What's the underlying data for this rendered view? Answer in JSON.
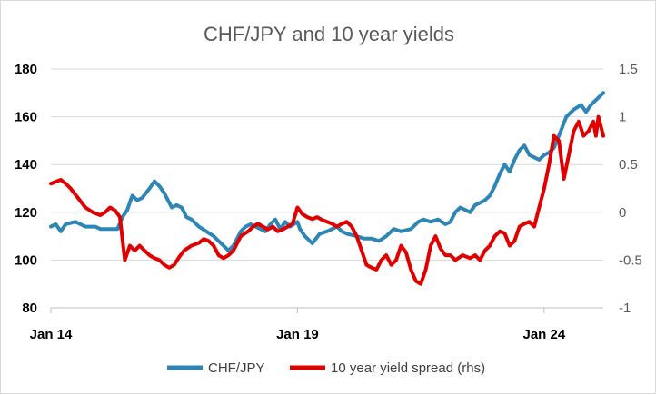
{
  "chart_data": {
    "type": "line",
    "title": "CHF/JPY and 10 year yields",
    "x_ticks": [
      "Jan 14",
      "Jan 19",
      "Jan 24"
    ],
    "x_range": [
      2014.0,
      2025.2
    ],
    "y_left": {
      "ticks": [
        "80",
        "100",
        "120",
        "140",
        "160",
        "180"
      ],
      "range": [
        80,
        180
      ]
    },
    "y_right": {
      "ticks": [
        "-1",
        "-0.5",
        "0",
        "0.5",
        "1",
        "1.5"
      ],
      "range": [
        -1,
        1.5
      ]
    },
    "grid": "horizontal",
    "legend_position": "bottom",
    "series": [
      {
        "name": "CHF/JPY",
        "axis": "left",
        "color": "#2e86b7",
        "points": [
          [
            2014.0,
            114
          ],
          [
            2014.1,
            115
          ],
          [
            2014.2,
            112
          ],
          [
            2014.3,
            115
          ],
          [
            2014.5,
            116
          ],
          [
            2014.7,
            114
          ],
          [
            2014.9,
            114
          ],
          [
            2015.0,
            113
          ],
          [
            2015.2,
            113
          ],
          [
            2015.35,
            113
          ],
          [
            2015.45,
            118
          ],
          [
            2015.55,
            121
          ],
          [
            2015.65,
            127
          ],
          [
            2015.75,
            125
          ],
          [
            2015.85,
            126
          ],
          [
            2016.0,
            130
          ],
          [
            2016.1,
            133
          ],
          [
            2016.2,
            131
          ],
          [
            2016.3,
            128
          ],
          [
            2016.45,
            122
          ],
          [
            2016.55,
            123
          ],
          [
            2016.65,
            122
          ],
          [
            2016.75,
            118
          ],
          [
            2016.85,
            117
          ],
          [
            2016.95,
            115
          ],
          [
            2017.0,
            114
          ],
          [
            2017.15,
            112
          ],
          [
            2017.3,
            110
          ],
          [
            2017.4,
            108
          ],
          [
            2017.5,
            106
          ],
          [
            2017.6,
            104
          ],
          [
            2017.7,
            106
          ],
          [
            2017.85,
            112
          ],
          [
            2017.95,
            114
          ],
          [
            2018.05,
            115
          ],
          [
            2018.15,
            114
          ],
          [
            2018.25,
            113
          ],
          [
            2018.35,
            112
          ],
          [
            2018.45,
            115
          ],
          [
            2018.55,
            117
          ],
          [
            2018.65,
            113
          ],
          [
            2018.75,
            116
          ],
          [
            2018.85,
            114
          ],
          [
            2019.0,
            116
          ],
          [
            2019.05,
            113
          ],
          [
            2019.15,
            110
          ],
          [
            2019.3,
            107
          ],
          [
            2019.45,
            111
          ],
          [
            2019.6,
            112
          ],
          [
            2019.8,
            114
          ],
          [
            2019.9,
            112
          ],
          [
            2020.0,
            111
          ],
          [
            2020.2,
            110
          ],
          [
            2020.35,
            109
          ],
          [
            2020.5,
            109
          ],
          [
            2020.65,
            108
          ],
          [
            2020.8,
            110
          ],
          [
            2020.95,
            113
          ],
          [
            2021.1,
            112
          ],
          [
            2021.3,
            113
          ],
          [
            2021.45,
            116
          ],
          [
            2021.55,
            117
          ],
          [
            2021.7,
            116
          ],
          [
            2021.85,
            117
          ],
          [
            2022.0,
            115
          ],
          [
            2022.1,
            116
          ],
          [
            2022.2,
            120
          ],
          [
            2022.3,
            122
          ],
          [
            2022.4,
            121
          ],
          [
            2022.5,
            120
          ],
          [
            2022.6,
            123
          ],
          [
            2022.7,
            124
          ],
          [
            2022.8,
            125
          ],
          [
            2022.9,
            127
          ],
          [
            2023.0,
            131
          ],
          [
            2023.1,
            136
          ],
          [
            2023.2,
            140
          ],
          [
            2023.3,
            137
          ],
          [
            2023.4,
            142
          ],
          [
            2023.5,
            146
          ],
          [
            2023.6,
            148
          ],
          [
            2023.7,
            144
          ],
          [
            2023.8,
            143
          ],
          [
            2023.9,
            142
          ],
          [
            2024.0,
            144
          ],
          [
            2024.1,
            145
          ],
          [
            2024.2,
            147
          ],
          [
            2024.3,
            152
          ],
          [
            2024.45,
            160
          ],
          [
            2024.6,
            163
          ],
          [
            2024.75,
            165
          ],
          [
            2024.85,
            162
          ],
          [
            2024.95,
            165
          ],
          [
            2025.1,
            168
          ],
          [
            2025.2,
            170
          ]
        ]
      },
      {
        "name": "10 year yield spread (rhs)",
        "axis": "right",
        "color": "#e00000",
        "points": [
          [
            2014.0,
            0.3
          ],
          [
            2014.1,
            0.32
          ],
          [
            2014.2,
            0.34
          ],
          [
            2014.3,
            0.3
          ],
          [
            2014.4,
            0.25
          ],
          [
            2014.55,
            0.15
          ],
          [
            2014.7,
            0.05
          ],
          [
            2014.85,
            0.0
          ],
          [
            2015.0,
            -0.03
          ],
          [
            2015.1,
            0.0
          ],
          [
            2015.2,
            0.05
          ],
          [
            2015.3,
            0.02
          ],
          [
            2015.4,
            -0.05
          ],
          [
            2015.5,
            -0.5
          ],
          [
            2015.6,
            -0.35
          ],
          [
            2015.7,
            -0.4
          ],
          [
            2015.8,
            -0.35
          ],
          [
            2015.9,
            -0.4
          ],
          [
            2016.0,
            -0.45
          ],
          [
            2016.1,
            -0.48
          ],
          [
            2016.2,
            -0.5
          ],
          [
            2016.3,
            -0.55
          ],
          [
            2016.4,
            -0.58
          ],
          [
            2016.5,
            -0.55
          ],
          [
            2016.6,
            -0.47
          ],
          [
            2016.7,
            -0.4
          ],
          [
            2016.85,
            -0.35
          ],
          [
            2017.0,
            -0.32
          ],
          [
            2017.1,
            -0.28
          ],
          [
            2017.2,
            -0.3
          ],
          [
            2017.3,
            -0.35
          ],
          [
            2017.4,
            -0.45
          ],
          [
            2017.5,
            -0.48
          ],
          [
            2017.6,
            -0.45
          ],
          [
            2017.7,
            -0.4
          ],
          [
            2017.85,
            -0.25
          ],
          [
            2018.0,
            -0.2
          ],
          [
            2018.1,
            -0.15
          ],
          [
            2018.2,
            -0.12
          ],
          [
            2018.3,
            -0.15
          ],
          [
            2018.4,
            -0.18
          ],
          [
            2018.5,
            -0.15
          ],
          [
            2018.6,
            -0.2
          ],
          [
            2018.7,
            -0.18
          ],
          [
            2018.8,
            -0.15
          ],
          [
            2018.9,
            -0.12
          ],
          [
            2019.0,
            0.05
          ],
          [
            2019.1,
            -0.02
          ],
          [
            2019.2,
            -0.05
          ],
          [
            2019.3,
            -0.07
          ],
          [
            2019.4,
            -0.05
          ],
          [
            2019.5,
            -0.08
          ],
          [
            2019.6,
            -0.1
          ],
          [
            2019.7,
            -0.12
          ],
          [
            2019.8,
            -0.15
          ],
          [
            2019.9,
            -0.12
          ],
          [
            2020.0,
            -0.1
          ],
          [
            2020.1,
            -0.15
          ],
          [
            2020.2,
            -0.25
          ],
          [
            2020.3,
            -0.4
          ],
          [
            2020.4,
            -0.55
          ],
          [
            2020.5,
            -0.58
          ],
          [
            2020.6,
            -0.6
          ],
          [
            2020.7,
            -0.5
          ],
          [
            2020.8,
            -0.45
          ],
          [
            2020.9,
            -0.55
          ],
          [
            2021.0,
            -0.5
          ],
          [
            2021.1,
            -0.35
          ],
          [
            2021.2,
            -0.42
          ],
          [
            2021.3,
            -0.6
          ],
          [
            2021.4,
            -0.72
          ],
          [
            2021.5,
            -0.75
          ],
          [
            2021.6,
            -0.6
          ],
          [
            2021.7,
            -0.35
          ],
          [
            2021.8,
            -0.25
          ],
          [
            2021.9,
            -0.38
          ],
          [
            2022.0,
            -0.45
          ],
          [
            2022.1,
            -0.45
          ],
          [
            2022.2,
            -0.5
          ],
          [
            2022.35,
            -0.45
          ],
          [
            2022.5,
            -0.48
          ],
          [
            2022.6,
            -0.45
          ],
          [
            2022.7,
            -0.5
          ],
          [
            2022.8,
            -0.4
          ],
          [
            2022.9,
            -0.35
          ],
          [
            2023.0,
            -0.25
          ],
          [
            2023.1,
            -0.2
          ],
          [
            2023.2,
            -0.22
          ],
          [
            2023.3,
            -0.35
          ],
          [
            2023.4,
            -0.3
          ],
          [
            2023.5,
            -0.15
          ],
          [
            2023.6,
            -0.12
          ],
          [
            2023.7,
            -0.1
          ],
          [
            2023.8,
            -0.15
          ],
          [
            2023.9,
            0.05
          ],
          [
            2024.0,
            0.25
          ],
          [
            2024.1,
            0.5
          ],
          [
            2024.2,
            0.8
          ],
          [
            2024.3,
            0.75
          ],
          [
            2024.4,
            0.35
          ],
          [
            2024.5,
            0.6
          ],
          [
            2024.6,
            0.85
          ],
          [
            2024.7,
            0.95
          ],
          [
            2024.8,
            0.8
          ],
          [
            2024.9,
            0.85
          ],
          [
            2025.0,
            0.95
          ],
          [
            2025.05,
            0.8
          ],
          [
            2025.1,
            1.0
          ],
          [
            2025.2,
            0.8
          ]
        ]
      }
    ]
  }
}
